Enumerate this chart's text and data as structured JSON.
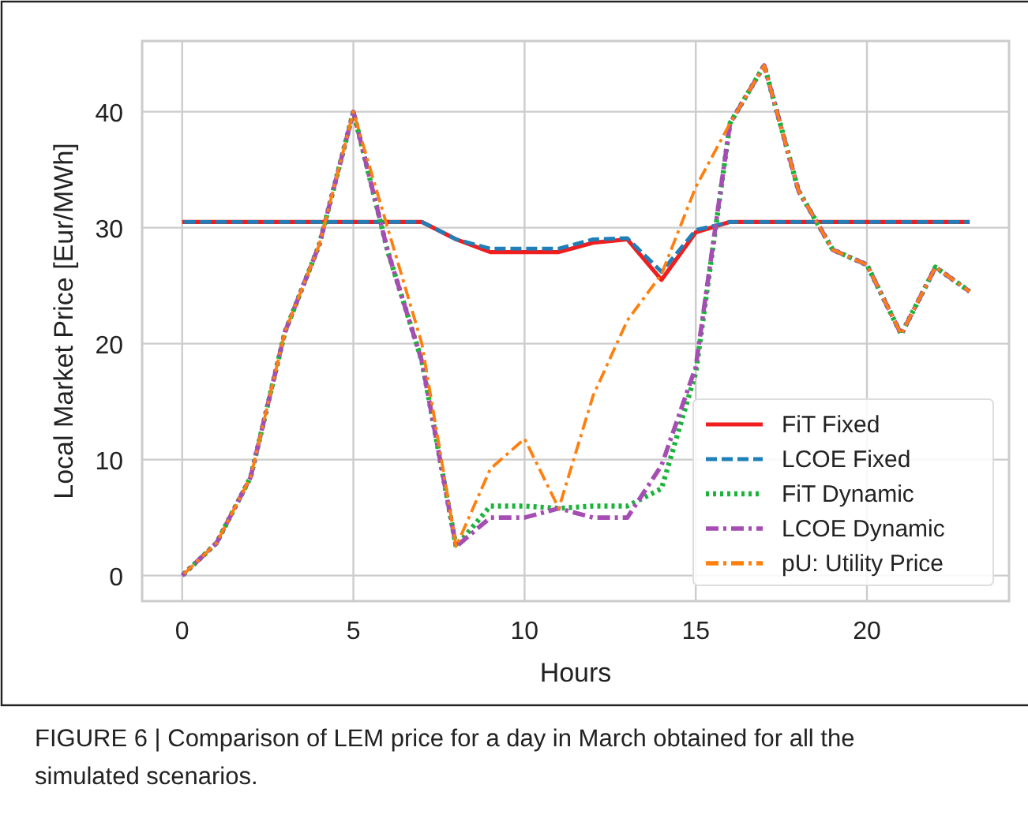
{
  "chart_data": {
    "type": "line",
    "xlabel": "Hours",
    "ylabel": "Local Market Price [Eur/MWh]",
    "x": [
      0,
      1,
      2,
      3,
      4,
      5,
      6,
      7,
      8,
      9,
      10,
      11,
      12,
      13,
      14,
      15,
      16,
      17,
      18,
      19,
      20,
      21,
      22,
      23
    ],
    "series": [
      {
        "name": "FiT Fixed",
        "color": "#f01e1e",
        "line_style": "solid",
        "values": [
          30.5,
          30.5,
          30.5,
          30.5,
          30.5,
          30.5,
          30.5,
          30.5,
          29,
          27.9,
          27.9,
          27.9,
          28.7,
          29,
          25.5,
          29.6,
          30.5,
          30.5,
          30.5,
          30.5,
          30.5,
          30.5,
          30.5,
          30.5
        ]
      },
      {
        "name": "LCOE Fixed",
        "color": "#1f7fb8",
        "line_style": "dashed",
        "values": [
          30.5,
          30.5,
          30.5,
          30.5,
          30.5,
          30.5,
          30.5,
          30.5,
          29,
          28.2,
          28.2,
          28.2,
          29,
          29.1,
          26.2,
          29.8,
          30.5,
          30.5,
          30.5,
          30.5,
          30.5,
          30.5,
          30.5,
          30.5
        ]
      },
      {
        "name": "FiT Dynamic",
        "color": "#1bb33a",
        "line_style": "dotted",
        "values": [
          0,
          2.8,
          8.5,
          21,
          28.5,
          40,
          28,
          18.5,
          2.5,
          6,
          6,
          5.8,
          6,
          6,
          7.5,
          17.5,
          39,
          44,
          33.2,
          28.1,
          26.8,
          20.8,
          26.6,
          24.5
        ]
      },
      {
        "name": "LCOE Dynamic",
        "color": "#a64db4",
        "line_style": "dashdot",
        "values": [
          0,
          2.8,
          8.5,
          21,
          28.5,
          40,
          28,
          18.5,
          2.5,
          5,
          5,
          5.8,
          5,
          5,
          9.5,
          18,
          39,
          44,
          33.2,
          28.1,
          26.8,
          20.8,
          26.6,
          24.5
        ]
      },
      {
        "name": "pU: Utility Price",
        "color": "#ff7f0e",
        "line_style": "dashdot",
        "values": [
          0,
          2.8,
          8.5,
          21,
          28.5,
          40,
          30,
          20,
          2.5,
          9.2,
          11.8,
          5.8,
          15.5,
          22,
          26,
          33.5,
          39,
          44,
          33.2,
          28.1,
          26.8,
          20.8,
          26.6,
          24.5
        ]
      }
    ],
    "xlim": [
      -1.17,
      24.15
    ],
    "xticks": [
      0,
      5,
      10,
      15,
      20
    ],
    "ylim": [
      -2.2,
      46.1
    ],
    "yticks": [
      0,
      10,
      20,
      30,
      40
    ],
    "grid": true,
    "legend": "bottom right",
    "marker": "none",
    "annotations": [
      "FIGURE 6 | Comparison of LEM price for a day in March obtained for all the simulated scenarios."
    ]
  }
}
